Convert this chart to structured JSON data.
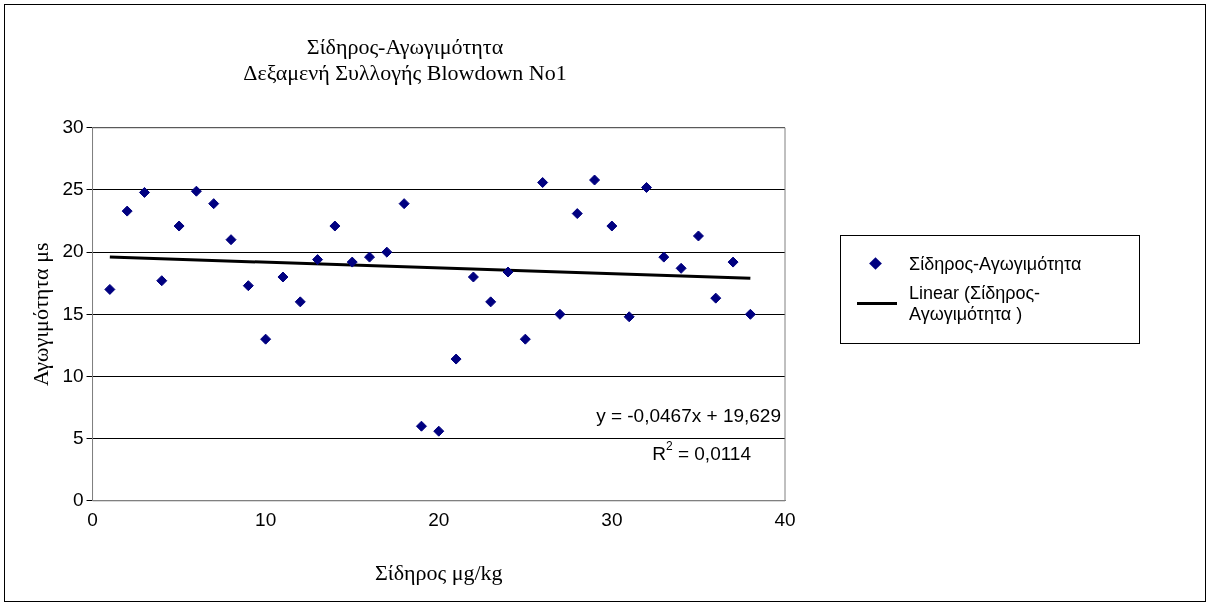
{
  "chart_data": {
    "type": "scatter",
    "title": [
      "Σίδηρος-Αγωγιμότητα",
      "Δεξαμενή Συλλογής Blowdown No1"
    ],
    "xlabel": "Σίδηρος μg/kg",
    "ylabel": "Αγωγιμότητα μs",
    "series": [
      {
        "name": "Σίδηρος-Αγωγιμότητα",
        "color": "#000080",
        "marker": "diamond",
        "x": [
          1,
          2,
          3,
          4,
          5,
          6,
          7,
          8,
          9,
          10,
          11,
          12,
          13,
          14,
          15,
          16,
          17,
          18,
          19,
          20,
          21,
          22,
          23,
          24,
          25,
          26,
          27,
          28,
          29,
          30,
          31,
          32,
          33,
          34,
          35,
          36,
          37,
          38
        ],
        "values": [
          17,
          23.3,
          24.8,
          17.7,
          22.1,
          24.9,
          23.9,
          21,
          17.3,
          13,
          18,
          16,
          19.4,
          22.1,
          19.2,
          19.6,
          20,
          23.9,
          6,
          5.6,
          11.4,
          18,
          16,
          18.4,
          13,
          25.6,
          15,
          23.1,
          25.8,
          22.1,
          14.8,
          25.2,
          19.6,
          18.7,
          21.3,
          16.3,
          19.2,
          15
        ]
      },
      {
        "name": "Linear (Σίδηρος-Αγωγιμότητα )",
        "type": "line",
        "color": "#000000",
        "marker": "none",
        "line_style": "solid",
        "x": [
          1,
          38
        ],
        "values": [
          19.6,
          17.9
        ]
      }
    ],
    "annotations": [
      "y = -0,0467x + 19,629",
      "R$^{2}$ = 0,0114"
    ],
    "xlim": [
      0,
      40
    ],
    "xticks": [
      0,
      10,
      20,
      30,
      40
    ],
    "ylim": [
      0,
      30
    ],
    "yticks": [
      0,
      5,
      10,
      15,
      20,
      25,
      30
    ],
    "grid": "y",
    "legend": "right"
  }
}
